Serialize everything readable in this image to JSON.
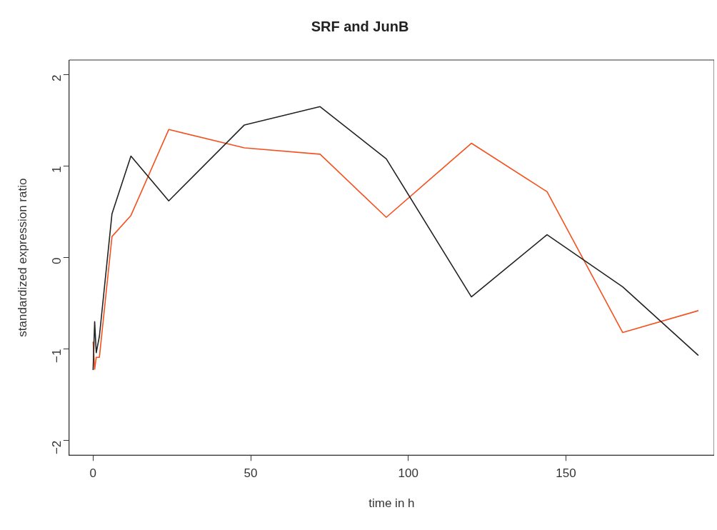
{
  "chart_data": {
    "type": "line",
    "title": "SRF and JunB",
    "xlabel": "time in h",
    "ylabel": "standardized expression ratio",
    "x": [
      0,
      0.5,
      1,
      2,
      6,
      12,
      24,
      48,
      72,
      93,
      120,
      144,
      168,
      192
    ],
    "series": [
      {
        "color": "#222222",
        "values": [
          -1.23,
          -0.7,
          -1.04,
          -0.86,
          0.48,
          1.11,
          0.62,
          1.45,
          1.65,
          1.08,
          -0.43,
          0.25,
          -0.32,
          -1.07
        ]
      },
      {
        "color": "#f4511e",
        "values": [
          -0.92,
          -1.22,
          -1.09,
          -1.09,
          0.23,
          0.46,
          1.4,
          1.2,
          1.13,
          0.44,
          1.25,
          0.72,
          -0.82,
          -0.58
        ]
      }
    ],
    "xlim": [
      -7.6,
      197
    ],
    "ylim": [
      -2.16,
      2.16
    ],
    "xticks": [
      0,
      50,
      100,
      150
    ],
    "yticks": [
      -2,
      -1,
      0,
      1,
      2
    ],
    "grid": false,
    "legend": false,
    "marker": "none",
    "line_style": "solid"
  }
}
